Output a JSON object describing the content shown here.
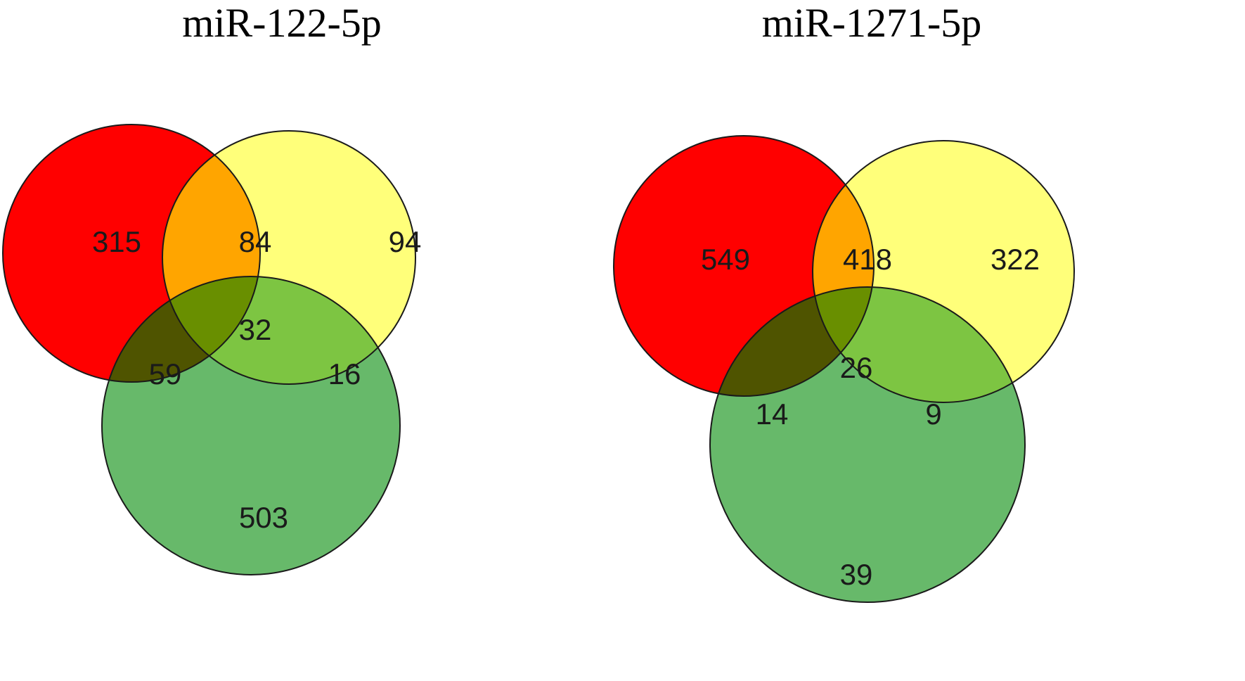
{
  "colors": {
    "set_a": "#ff0000",
    "set_b": "#ffff7a",
    "set_c": "#67b96a",
    "ab": "#ffa500",
    "ac": "#4f5400",
    "bc": "#7dc542",
    "abc": "#698f00"
  },
  "panels": [
    {
      "title": "miR-122-5p",
      "counts": {
        "a_only": "315",
        "ab": "84",
        "b_only": "94",
        "abc": "32",
        "ac": "59",
        "bc": "16",
        "c_only": "503"
      }
    },
    {
      "title": "miR-1271-5p",
      "counts": {
        "a_only": "549",
        "ab": "418",
        "b_only": "322",
        "abc": "26",
        "ac": "14",
        "bc": "9",
        "c_only": "39"
      }
    }
  ]
}
